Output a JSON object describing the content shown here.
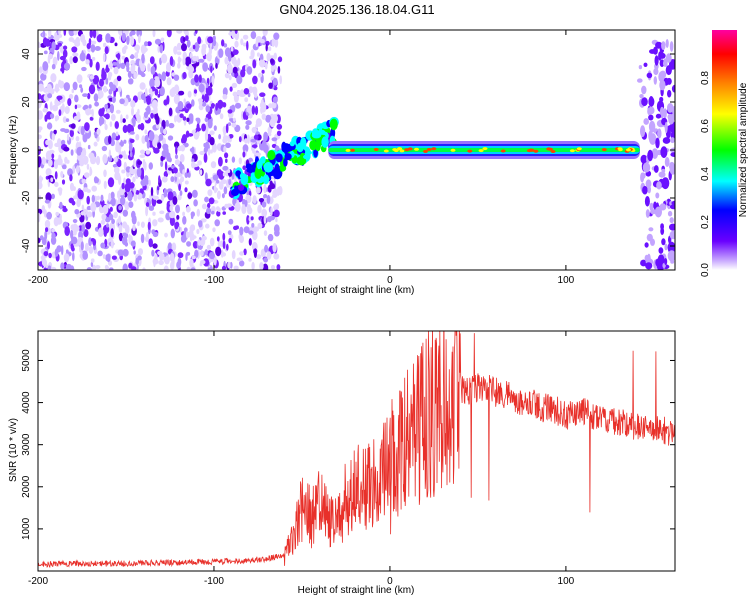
{
  "figure_title": "GN04.2025.136.18.04.G11",
  "chart_data": [
    {
      "type": "heatmap",
      "title": "GN04.2025.136.18.04.G11",
      "xlabel": "Height of straight line (km)",
      "ylabel": "Frequency (Hz)",
      "xlim": [
        -200,
        162
      ],
      "ylim": [
        -50,
        50
      ],
      "x_ticks": [
        -200,
        -100,
        0,
        100
      ],
      "y_ticks": [
        -40,
        -20,
        0,
        20,
        40
      ],
      "colorbar": {
        "label": "Normalized spectral amplitude",
        "range": [
          0,
          1
        ],
        "ticks": [
          "0.0",
          "0.2",
          "0.4",
          "0.6",
          "0.8"
        ],
        "colors": [
          "#ffffff",
          "#6a00ff",
          "#0000ff",
          "#00ffff",
          "#00ff00",
          "#ffff00",
          "#ff8000",
          "#ff0000",
          "#ff00a0"
        ]
      },
      "features": [
        {
          "name": "noise",
          "x_range": [
            -200,
            -62
          ],
          "freq_range": [
            -50,
            50
          ],
          "amplitude": 0.1
        },
        {
          "name": "transition",
          "x_range": [
            -90,
            -30
          ],
          "freq_start": -15,
          "freq_end": 8,
          "amplitude": 0.35
        },
        {
          "name": "main_signal",
          "x_range": [
            -35,
            142
          ],
          "freq": 0,
          "amplitude": 0.6
        },
        {
          "name": "end_noise",
          "x_range": [
            142,
            162
          ],
          "freq_range": [
            -50,
            45
          ],
          "amplitude": 0.2
        }
      ],
      "grid": false
    },
    {
      "type": "line",
      "xlabel": "Height of straight line (km)",
      "ylabel": "SNR (10 * v/v)",
      "xlim": [
        -200,
        162
      ],
      "ylim": [
        0,
        5700
      ],
      "x_ticks": [
        -200,
        -100,
        0,
        100
      ],
      "y_ticks": [
        1000,
        2000,
        3000,
        4000,
        5000
      ],
      "color": "#e8302a",
      "series": [
        {
          "x": [
            -200,
            -180,
            -160,
            -140,
            -120,
            -100,
            -80,
            -70,
            -60,
            -55,
            -50,
            -45,
            -40,
            -35,
            -30,
            -25,
            -20,
            -15,
            -10,
            -5,
            0,
            5,
            10,
            15,
            20,
            25,
            30,
            35,
            40,
            45,
            50,
            55,
            60,
            65,
            70,
            75,
            80,
            85,
            90,
            95,
            100,
            105,
            110,
            115,
            120,
            125,
            130,
            135,
            140,
            145,
            150,
            155,
            160
          ],
          "values": [
            150,
            180,
            170,
            190,
            200,
            220,
            250,
            290,
            380,
            800,
            1500,
            1300,
            1600,
            1200,
            1100,
            1700,
            1900,
            2000,
            2100,
            2300,
            2600,
            2800,
            3100,
            3300,
            3600,
            3900,
            4100,
            4200,
            4300,
            4250,
            4350,
            4400,
            4250,
            4200,
            4100,
            4000,
            4050,
            3900,
            3850,
            3800,
            3700,
            3750,
            3800,
            3650,
            3700,
            3600,
            3550,
            3500,
            3450,
            3400,
            3400,
            3350,
            3300
          ]
        }
      ],
      "grid": false
    }
  ]
}
